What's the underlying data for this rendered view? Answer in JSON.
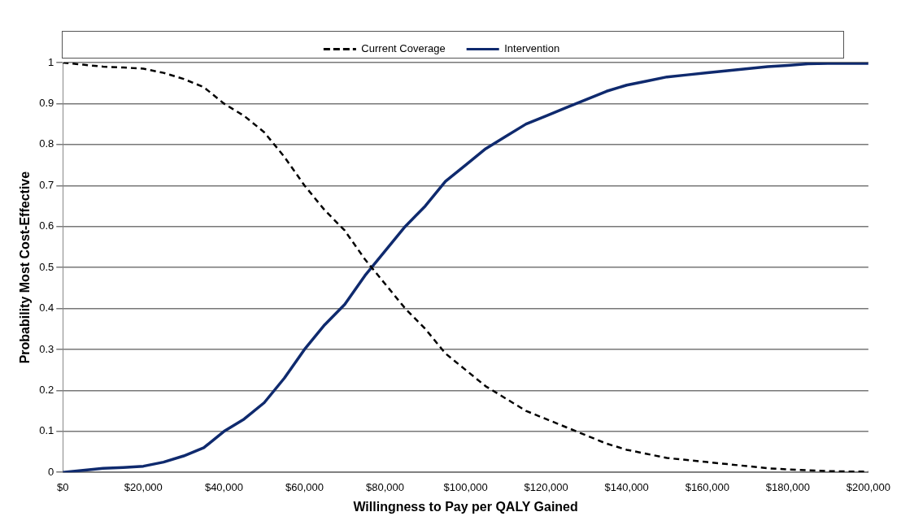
{
  "chart_data": {
    "type": "line",
    "xlabel": "Willingness to Pay per QALY Gained",
    "ylabel": "Probability Most Cost-Effective",
    "x": [
      0,
      5000,
      10000,
      15000,
      20000,
      25000,
      30000,
      35000,
      40000,
      45000,
      50000,
      55000,
      60000,
      65000,
      70000,
      75000,
      80000,
      85000,
      90000,
      95000,
      100000,
      105000,
      110000,
      115000,
      120000,
      125000,
      130000,
      135000,
      140000,
      145000,
      150000,
      155000,
      160000,
      165000,
      170000,
      175000,
      180000,
      185000,
      190000,
      195000,
      200000
    ],
    "series": [
      {
        "name": "Current Coverage",
        "color": "#000000",
        "line_style": "dashed",
        "values": [
          1,
          0.995,
          0.99,
          0.988,
          0.985,
          0.975,
          0.96,
          0.94,
          0.9,
          0.87,
          0.83,
          0.77,
          0.7,
          0.64,
          0.59,
          0.52,
          0.46,
          0.4,
          0.35,
          0.29,
          0.25,
          0.21,
          0.18,
          0.15,
          0.13,
          0.11,
          0.09,
          0.07,
          0.055,
          0.045,
          0.035,
          0.03,
          0.025,
          0.02,
          0.015,
          0.01,
          0.007,
          0.005,
          0.003,
          0.002,
          0.002
        ]
      },
      {
        "name": "Intervention",
        "color": "#0f2a6e",
        "line_style": "solid",
        "values": [
          0,
          0.005,
          0.01,
          0.012,
          0.015,
          0.025,
          0.04,
          0.06,
          0.1,
          0.13,
          0.17,
          0.23,
          0.3,
          0.36,
          0.41,
          0.48,
          0.54,
          0.6,
          0.65,
          0.71,
          0.75,
          0.79,
          0.82,
          0.85,
          0.87,
          0.89,
          0.91,
          0.93,
          0.945,
          0.955,
          0.965,
          0.97,
          0.975,
          0.98,
          0.985,
          0.99,
          0.993,
          0.997,
          0.998,
          0.998,
          0.998
        ]
      }
    ],
    "xlim": [
      0,
      200000
    ],
    "xticks": [
      {
        "value": 0,
        "label": "$0"
      },
      {
        "value": 20000,
        "label": "$20,000"
      },
      {
        "value": 40000,
        "label": "$40,000"
      },
      {
        "value": 60000,
        "label": "$60,000"
      },
      {
        "value": 80000,
        "label": "$80,000"
      },
      {
        "value": 100000,
        "label": "$100,000"
      },
      {
        "value": 120000,
        "label": "$120,000"
      },
      {
        "value": 140000,
        "label": "$140,000"
      },
      {
        "value": 160000,
        "label": "$160,000"
      },
      {
        "value": 180000,
        "label": "$180,000"
      },
      {
        "value": 200000,
        "label": "$200,000"
      }
    ],
    "ylim": [
      0,
      1
    ],
    "yticks": [
      0,
      0.1,
      0.2,
      0.3,
      0.4,
      0.5,
      0.6,
      0.7,
      0.8,
      0.9,
      1
    ],
    "grid": "y",
    "legend": "top",
    "marker": "none"
  }
}
